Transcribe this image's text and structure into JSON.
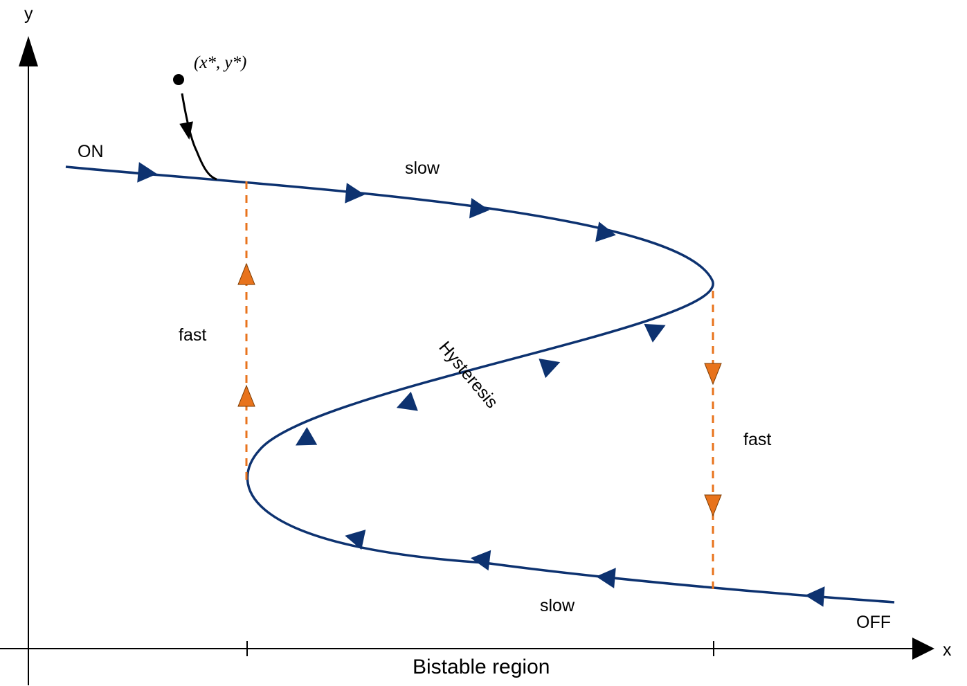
{
  "labels": {
    "y_axis": "y",
    "x_axis": "x",
    "on": "ON",
    "off": "OFF",
    "slow_top": "slow",
    "slow_bottom": "slow",
    "fast_left": "fast",
    "fast_right": "fast",
    "hysteresis": "Hysteresis",
    "bistable_region": "Bistable region",
    "fixed_point": "(x*, y*)"
  },
  "colors": {
    "curve": "#0d3270",
    "fast_jump": "#e8731c",
    "axis": "#000000",
    "trajectory": "#000000"
  }
}
